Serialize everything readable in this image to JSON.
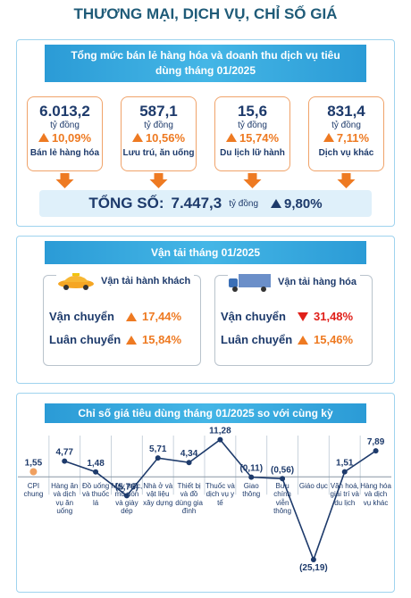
{
  "title": "THƯƠNG MẠI, DỊCH VỤ, CHỈ SỐ GIÁ",
  "retail": {
    "heading": "Tổng mức bán lẻ hàng hóa và doanh thu dịch vụ tiêu dùng tháng 01/2025",
    "cards": [
      {
        "value": "6.013,2",
        "unit": "tỷ đồng",
        "change": "10,09%",
        "trend": "up",
        "label": "Bán lẻ hàng hóa"
      },
      {
        "value": "587,1",
        "unit": "tỷ đồng",
        "change": "10,56%",
        "trend": "up",
        "label": "Lưu trú, ăn uống"
      },
      {
        "value": "15,6",
        "unit": "tỷ đồng",
        "change": "15,74%",
        "trend": "up",
        "label": "Du lịch lữ hành"
      },
      {
        "value": "831,4",
        "unit": "tỷ đồng",
        "change": "7,11%",
        "trend": "up",
        "label": "Dịch vụ khác"
      }
    ],
    "total": {
      "label": "TỔNG SỐ:",
      "value": "7.447,3",
      "unit": "tỷ đồng",
      "change": "9,80%",
      "trend": "up"
    }
  },
  "transport": {
    "heading": "Vận tải tháng 01/2025",
    "panels": [
      {
        "title": "Vận tải hành khách",
        "rows": [
          {
            "label": "Vận chuyển",
            "change": "17,44%",
            "trend": "up"
          },
          {
            "label": "Luân chuyển",
            "change": "15,84%",
            "trend": "up"
          }
        ]
      },
      {
        "title": "Vận tải hàng hóa",
        "rows": [
          {
            "label": "Vận chuyển",
            "change": "31,48%",
            "trend": "down"
          },
          {
            "label": "Luân chuyển",
            "change": "15,46%",
            "trend": "up"
          }
        ]
      }
    ]
  },
  "chart_data": {
    "type": "line",
    "title": "Chỉ số giá tiêu dùng tháng 01/2025 so với cùng kỳ",
    "categories": [
      "CPI chung",
      "Hàng ăn và dịch vụ ăn uống",
      "Đồ uống và thuốc lá",
      "May mặc, mũ nón và giày dép",
      "Nhà ở và vật liệu xây dựng",
      "Thiết bị và đồ dùng gia đình",
      "Thuốc và dịch vụ y tế",
      "Giao thông",
      "Bưu chính viễn thông",
      "Giáo dục",
      "Văn hoá, giải trí và du lịch",
      "Hàng hóa và dịch vụ khác"
    ],
    "values": [
      1.55,
      4.77,
      1.48,
      -5.76,
      5.71,
      4.34,
      11.28,
      -0.11,
      -0.56,
      -25.19,
      1.51,
      7.89
    ],
    "value_labels": [
      "1,55",
      "4,77",
      "1,48",
      "(5,76)",
      "5,71",
      "4,34",
      "11,28",
      "(0,11)",
      "(0,56)",
      "(25,19)",
      "1,51",
      "7,89"
    ],
    "color": "#1d3a6b",
    "ylim": [
      -26,
      12
    ]
  }
}
